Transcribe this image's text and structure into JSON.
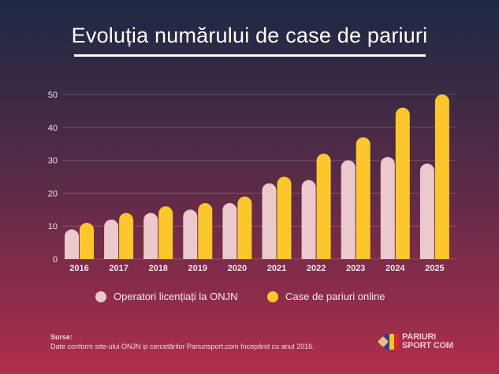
{
  "title": "Evoluția numărului de case de pariuri",
  "chart_data": {
    "type": "bar",
    "title": "Evoluția numărului de case de pariuri",
    "xlabel": "",
    "ylabel": "",
    "categories": [
      "2016",
      "2017",
      "2018",
      "2019",
      "2020",
      "2021",
      "2022",
      "2023",
      "2024",
      "2025"
    ],
    "series": [
      {
        "name": "Operatori licențiați la ONJN",
        "color": "#ecc9cc",
        "values": [
          9,
          12,
          14,
          15,
          17,
          23,
          24,
          30,
          31,
          29
        ]
      },
      {
        "name": "Case de pariuri online",
        "color": "#fbc72c",
        "values": [
          11,
          14,
          16,
          17,
          19,
          25,
          32,
          37,
          46,
          50
        ]
      }
    ],
    "ylim": [
      0,
      50
    ],
    "yticks": [
      0,
      10,
      20,
      30,
      40,
      50
    ],
    "grid": true,
    "legend_position": "bottom"
  },
  "legend": {
    "items": [
      {
        "label": "Operatori licențiați la ONJN",
        "color": "#ecc9cc"
      },
      {
        "label": "Case de pariuri online",
        "color": "#fbc72c"
      }
    ]
  },
  "sources": {
    "heading": "Surse:",
    "text": "Date conform site-ului ONJN și cercetărilor Pariurisport.com începând cu anul 2016."
  },
  "logo": {
    "line1": "PARIURI",
    "line2": "SPORT COM",
    "flag_colors": [
      "#2b3f8f",
      "#f5c728",
      "#d8262f"
    ]
  }
}
